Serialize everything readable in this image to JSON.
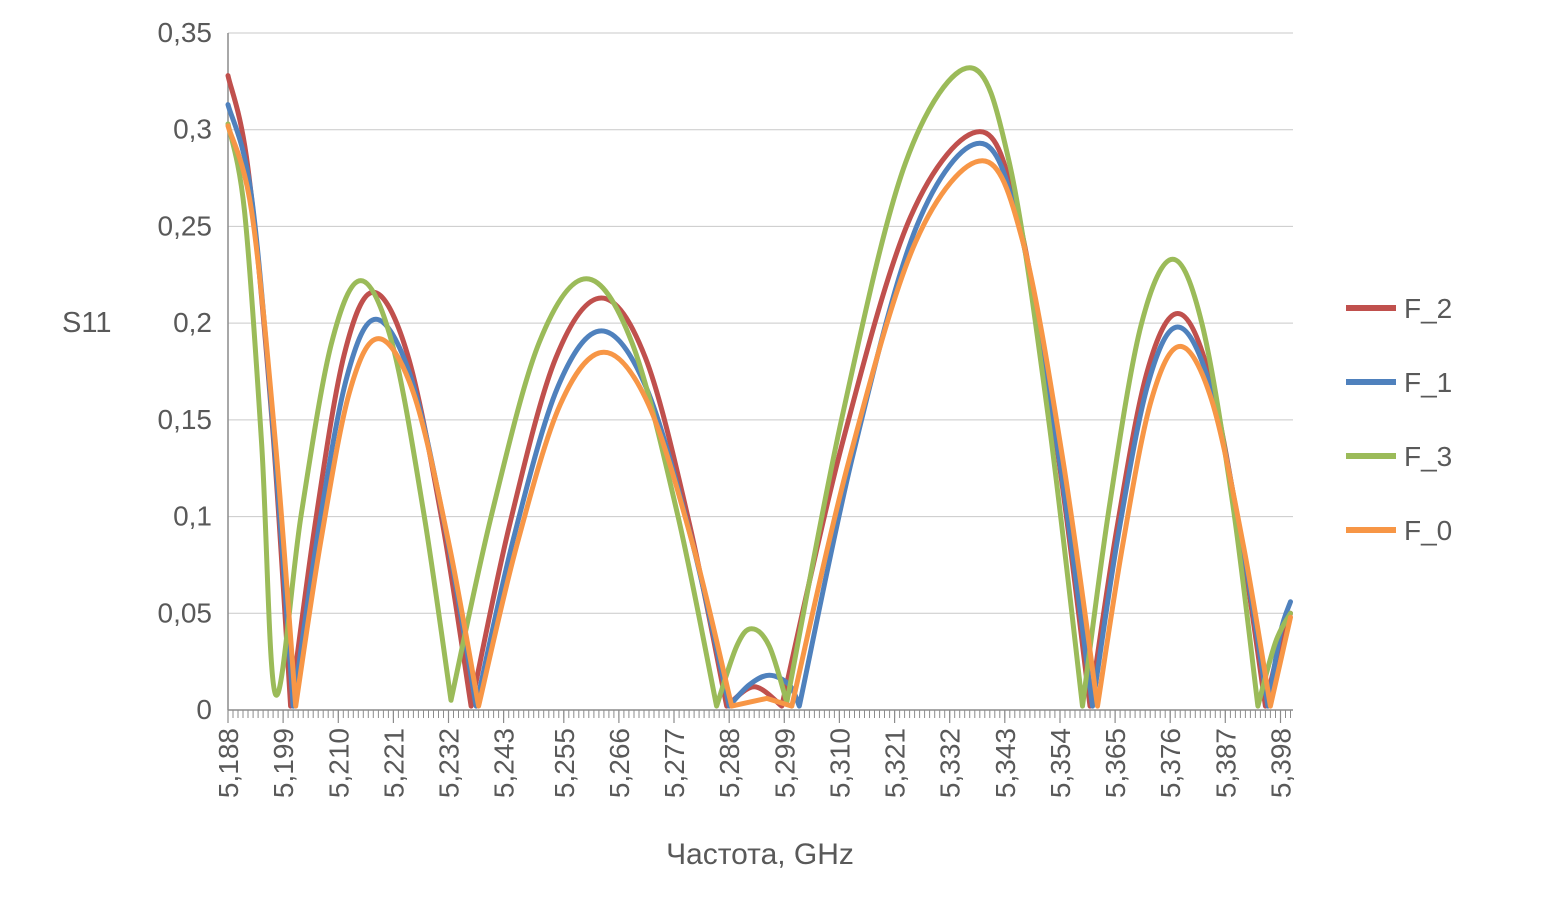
{
  "chart_data": {
    "type": "line",
    "title": "",
    "xlabel": "Частота, GHz",
    "ylabel": "S11",
    "xlim": [
      5.188,
      5.4005
    ],
    "ylim": [
      0,
      0.35
    ],
    "grid": true,
    "legend_position": "right",
    "y_ticks": [
      {
        "value": 0,
        "label": "0"
      },
      {
        "value": 0.05,
        "label": "0,05"
      },
      {
        "value": 0.1,
        "label": "0,1"
      },
      {
        "value": 0.15,
        "label": "0,15"
      },
      {
        "value": 0.2,
        "label": "0,2"
      },
      {
        "value": 0.25,
        "label": "0,25"
      },
      {
        "value": 0.3,
        "label": "0,3"
      },
      {
        "value": 0.35,
        "label": "0,35"
      }
    ],
    "x_ticks": [
      {
        "value": 5.188,
        "label": "5,188"
      },
      {
        "value": 5.199,
        "label": "5,199"
      },
      {
        "value": 5.21,
        "label": "5,210"
      },
      {
        "value": 5.221,
        "label": "5,221"
      },
      {
        "value": 5.232,
        "label": "5,232"
      },
      {
        "value": 5.243,
        "label": "5,243"
      },
      {
        "value": 5.255,
        "label": "5,255"
      },
      {
        "value": 5.266,
        "label": "5,266"
      },
      {
        "value": 5.277,
        "label": "5,277"
      },
      {
        "value": 5.288,
        "label": "5,288"
      },
      {
        "value": 5.299,
        "label": "5,299"
      },
      {
        "value": 5.31,
        "label": "5,310"
      },
      {
        "value": 5.321,
        "label": "5,321"
      },
      {
        "value": 5.332,
        "label": "5,332"
      },
      {
        "value": 5.343,
        "label": "5,343"
      },
      {
        "value": 5.354,
        "label": "5,354"
      },
      {
        "value": 5.365,
        "label": "5,365"
      },
      {
        "value": 5.376,
        "label": "5,376"
      },
      {
        "value": 5.387,
        "label": "5,387"
      },
      {
        "value": 5.398,
        "label": "5,398"
      }
    ],
    "x_minor_tick_step": 0.001,
    "legend": [
      "F_2",
      "F_1",
      "F_3",
      "F_0"
    ],
    "series": [
      {
        "name": "F_2",
        "color": "#C0504D",
        "points": [
          [
            5.188,
            0.328
          ],
          [
            5.192,
            0.28
          ],
          [
            5.1968,
            0.149
          ],
          [
            5.2005,
            0.002
          ],
          [
            5.2055,
            0.098
          ],
          [
            5.2112,
            0.184
          ],
          [
            5.217,
            0.216
          ],
          [
            5.2238,
            0.184
          ],
          [
            5.2307,
            0.098
          ],
          [
            5.2365,
            0.002
          ],
          [
            5.2443,
            0.097
          ],
          [
            5.2534,
            0.182
          ],
          [
            5.2625,
            0.213
          ],
          [
            5.2713,
            0.182
          ],
          [
            5.28,
            0.097
          ],
          [
            5.2875,
            0.002
          ],
          [
            5.293,
            0.012
          ],
          [
            5.2985,
            0.002
          ],
          [
            5.3104,
            0.136
          ],
          [
            5.3242,
            0.255
          ],
          [
            5.338,
            0.299
          ],
          [
            5.3457,
            0.255
          ],
          [
            5.3534,
            0.136
          ],
          [
            5.36,
            0.002
          ],
          [
            5.3653,
            0.093
          ],
          [
            5.3714,
            0.175
          ],
          [
            5.3775,
            0.205
          ],
          [
            5.3836,
            0.175
          ],
          [
            5.3898,
            0.093
          ],
          [
            5.395,
            0.002
          ],
          [
            5.3975,
            0.03
          ],
          [
            5.4,
            0.05
          ]
        ]
      },
      {
        "name": "F_1",
        "color": "#4F81BD",
        "points": [
          [
            5.188,
            0.313
          ],
          [
            5.1926,
            0.267
          ],
          [
            5.1971,
            0.142
          ],
          [
            5.201,
            0.002
          ],
          [
            5.206,
            0.092
          ],
          [
            5.2117,
            0.172
          ],
          [
            5.2175,
            0.202
          ],
          [
            5.2245,
            0.172
          ],
          [
            5.2315,
            0.092
          ],
          [
            5.2375,
            0.002
          ],
          [
            5.245,
            0.089
          ],
          [
            5.2538,
            0.167
          ],
          [
            5.2625,
            0.196
          ],
          [
            5.2714,
            0.167
          ],
          [
            5.2804,
            0.089
          ],
          [
            5.288,
            0.002
          ],
          [
            5.292,
            0.013
          ],
          [
            5.296,
            0.018
          ],
          [
            5.3,
            0.013
          ],
          [
            5.302,
            0.002
          ],
          [
            5.3128,
            0.133
          ],
          [
            5.3254,
            0.25
          ],
          [
            5.338,
            0.293
          ],
          [
            5.3459,
            0.25
          ],
          [
            5.3537,
            0.133
          ],
          [
            5.3605,
            0.002
          ],
          [
            5.3656,
            0.09
          ],
          [
            5.3716,
            0.169
          ],
          [
            5.3775,
            0.198
          ],
          [
            5.3838,
            0.169
          ],
          [
            5.3901,
            0.09
          ],
          [
            5.3955,
            0.002
          ],
          [
            5.398,
            0.04
          ],
          [
            5.4,
            0.056
          ]
        ]
      },
      {
        "name": "F_3",
        "color": "#9BBB59",
        "points": [
          [
            5.188,
            0.303
          ],
          [
            5.1913,
            0.258
          ],
          [
            5.1947,
            0.138
          ],
          [
            5.1975,
            0.008
          ],
          [
            5.2026,
            0.101
          ],
          [
            5.2086,
            0.189
          ],
          [
            5.2145,
            0.222
          ],
          [
            5.2208,
            0.189
          ],
          [
            5.2271,
            0.101
          ],
          [
            5.2325,
            0.005
          ],
          [
            5.2406,
            0.101
          ],
          [
            5.2501,
            0.19
          ],
          [
            5.2595,
            0.223
          ],
          [
            5.2686,
            0.19
          ],
          [
            5.2777,
            0.101
          ],
          [
            5.2855,
            0.002
          ],
          [
            5.2895,
            0.033
          ],
          [
            5.2925,
            0.042
          ],
          [
            5.296,
            0.033
          ],
          [
            5.2995,
            0.004
          ],
          [
            5.3105,
            0.151
          ],
          [
            5.3232,
            0.283
          ],
          [
            5.336,
            0.332
          ],
          [
            5.3439,
            0.283
          ],
          [
            5.3517,
            0.151
          ],
          [
            5.3585,
            0.002
          ],
          [
            5.3639,
            0.106
          ],
          [
            5.3702,
            0.199
          ],
          [
            5.3765,
            0.233
          ],
          [
            5.3824,
            0.199
          ],
          [
            5.3885,
            0.106
          ],
          [
            5.3935,
            0.002
          ],
          [
            5.397,
            0.035
          ],
          [
            5.4,
            0.05
          ]
        ]
      },
      {
        "name": "F_0",
        "color": "#F79646",
        "points": [
          [
            5.188,
            0.302
          ],
          [
            5.1927,
            0.258
          ],
          [
            5.1975,
            0.137
          ],
          [
            5.2015,
            0.002
          ],
          [
            5.2065,
            0.087
          ],
          [
            5.2122,
            0.164
          ],
          [
            5.218,
            0.192
          ],
          [
            5.225,
            0.164
          ],
          [
            5.232,
            0.087
          ],
          [
            5.238,
            0.002
          ],
          [
            5.2455,
            0.084
          ],
          [
            5.2543,
            0.158
          ],
          [
            5.263,
            0.185
          ],
          [
            5.2719,
            0.158
          ],
          [
            5.2809,
            0.084
          ],
          [
            5.2885,
            0.002
          ],
          [
            5.2955,
            0.006
          ],
          [
            5.3005,
            0.002
          ],
          [
            5.3119,
            0.129
          ],
          [
            5.3252,
            0.242
          ],
          [
            5.3385,
            0.284
          ],
          [
            5.3466,
            0.242
          ],
          [
            5.3546,
            0.129
          ],
          [
            5.3615,
            0.002
          ],
          [
            5.3665,
            0.085
          ],
          [
            5.3722,
            0.16
          ],
          [
            5.378,
            0.188
          ],
          [
            5.3843,
            0.16
          ],
          [
            5.3906,
            0.085
          ],
          [
            5.396,
            0.002
          ],
          [
            5.398,
            0.025
          ],
          [
            5.4,
            0.048
          ]
        ]
      }
    ]
  },
  "style": {
    "grid_color": "#C9C9C9",
    "axis_color": "#8C8C8C",
    "text_color": "#595959",
    "background": "#FFFFFF"
  }
}
